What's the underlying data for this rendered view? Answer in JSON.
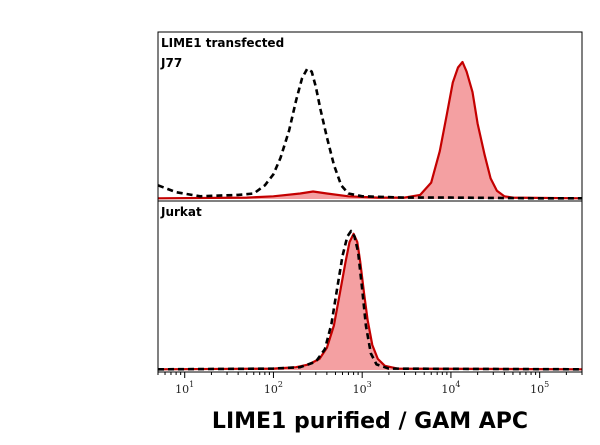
{
  "chart_data": {
    "type": "area",
    "xlabel": "LIME1 purified / GAM APC",
    "x_scale": "log",
    "xlim": [
      5,
      300000
    ],
    "x_ticks": [
      {
        "value": 10,
        "base": "10",
        "exp": "1"
      },
      {
        "value": 100,
        "base": "10",
        "exp": "2"
      },
      {
        "value": 1000,
        "base": "10",
        "exp": "3"
      },
      {
        "value": 10000,
        "base": "10",
        "exp": "4"
      },
      {
        "value": 100000,
        "base": "10",
        "exp": "5"
      }
    ],
    "colors": {
      "sample_fill": "#f4a0a2",
      "sample_line": "#c40000",
      "control_line": "#000000",
      "frame": "#000000"
    },
    "panels": [
      {
        "label_lines": [
          "LIME1 transfected",
          "J77"
        ],
        "series": [
          {
            "style": "dashed",
            "points": [
              [
                5,
                0.1
              ],
              [
                8,
                0.05
              ],
              [
                15,
                0.02
              ],
              [
                40,
                0.03
              ],
              [
                60,
                0.04
              ],
              [
                80,
                0.1
              ],
              [
                100,
                0.18
              ],
              [
                120,
                0.3
              ],
              [
                150,
                0.5
              ],
              [
                180,
                0.72
              ],
              [
                210,
                0.88
              ],
              [
                240,
                0.95
              ],
              [
                270,
                0.93
              ],
              [
                300,
                0.82
              ],
              [
                340,
                0.65
              ],
              [
                400,
                0.45
              ],
              [
                480,
                0.25
              ],
              [
                580,
                0.1
              ],
              [
                700,
                0.04
              ],
              [
                1000,
                0.02
              ],
              [
                3000,
                0.01
              ],
              [
                10000,
                0.01
              ],
              [
                100000,
                0.005
              ],
              [
                300000,
                0.005
              ]
            ]
          },
          {
            "style": "filled",
            "points": [
              [
                5,
                0.005
              ],
              [
                50,
                0.01
              ],
              [
                100,
                0.02
              ],
              [
                200,
                0.04
              ],
              [
                280,
                0.055
              ],
              [
                400,
                0.04
              ],
              [
                700,
                0.02
              ],
              [
                1500,
                0.01
              ],
              [
                3000,
                0.01
              ],
              [
                4500,
                0.03
              ],
              [
                6000,
                0.12
              ],
              [
                7500,
                0.35
              ],
              [
                9000,
                0.62
              ],
              [
                10500,
                0.85
              ],
              [
                12000,
                0.96
              ],
              [
                13500,
                1.0
              ],
              [
                15000,
                0.93
              ],
              [
                17500,
                0.78
              ],
              [
                20000,
                0.55
              ],
              [
                24000,
                0.32
              ],
              [
                28000,
                0.15
              ],
              [
                33000,
                0.06
              ],
              [
                40000,
                0.02
              ],
              [
                50000,
                0.01
              ],
              [
                300000,
                0.005
              ]
            ]
          }
        ]
      },
      {
        "label_lines": [
          "Jurkat"
        ],
        "series": [
          {
            "style": "dashed",
            "points": [
              [
                5,
                0.005
              ],
              [
                100,
                0.01
              ],
              [
                200,
                0.02
              ],
              [
                300,
                0.06
              ],
              [
                380,
                0.15
              ],
              [
                450,
                0.33
              ],
              [
                520,
                0.58
              ],
              [
                600,
                0.82
              ],
              [
                680,
                0.96
              ],
              [
                750,
                1.0
              ],
              [
                820,
                0.96
              ],
              [
                900,
                0.85
              ],
              [
                1000,
                0.58
              ],
              [
                1100,
                0.32
              ],
              [
                1250,
                0.12
              ],
              [
                1450,
                0.04
              ],
              [
                2000,
                0.01
              ],
              [
                300000,
                0.005
              ]
            ]
          },
          {
            "style": "filled",
            "points": [
              [
                5,
                0.005
              ],
              [
                100,
                0.01
              ],
              [
                180,
                0.02
              ],
              [
                250,
                0.04
              ],
              [
                330,
                0.08
              ],
              [
                400,
                0.16
              ],
              [
                480,
                0.32
              ],
              [
                560,
                0.55
              ],
              [
                650,
                0.78
              ],
              [
                720,
                0.92
              ],
              [
                800,
                0.98
              ],
              [
                880,
                0.92
              ],
              [
                950,
                0.78
              ],
              [
                1050,
                0.55
              ],
              [
                1150,
                0.36
              ],
              [
                1300,
                0.18
              ],
              [
                1500,
                0.08
              ],
              [
                1800,
                0.03
              ],
              [
                2500,
                0.01
              ],
              [
                300000,
                0.005
              ]
            ]
          }
        ]
      }
    ]
  }
}
